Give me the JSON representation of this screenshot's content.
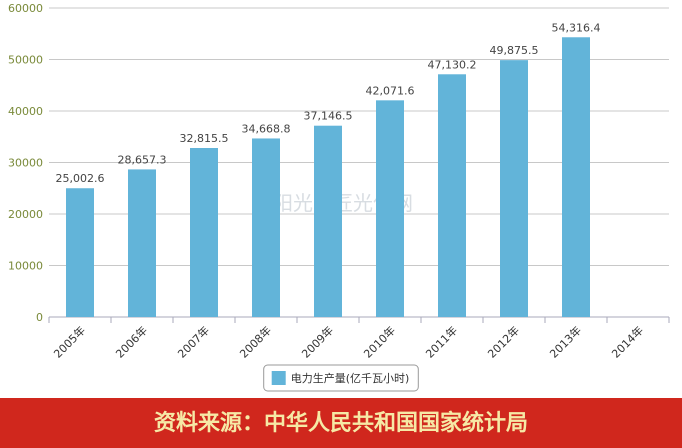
{
  "chart_data": {
    "type": "bar",
    "categories": [
      "2005年",
      "2006年",
      "2007年",
      "2008年",
      "2009年",
      "2010年",
      "2011年",
      "2012年",
      "2013年",
      "2014年"
    ],
    "series": [
      {
        "name": "电力生产量(亿千瓦小时)",
        "color": "#62b4d9",
        "values": [
          25002.6,
          28657.3,
          32815.5,
          34668.8,
          37146.5,
          42071.6,
          47130.2,
          49875.5,
          54316.4,
          null
        ],
        "value_labels": [
          "25,002.6",
          "28,657.3",
          "32,815.5",
          "34,668.8",
          "37,146.5",
          "42,071.6",
          "47,130.2",
          "49,875.5",
          "54,316.4",
          null
        ]
      }
    ],
    "ylim": [
      0,
      60000
    ],
    "yticks": [
      0,
      10000,
      20000,
      30000,
      40000,
      50000,
      60000
    ],
    "grid": true,
    "legend": "bottom",
    "watermark": "阳光工匠光伏网",
    "source": "资料来源：中华人民共和国国家统计局"
  }
}
